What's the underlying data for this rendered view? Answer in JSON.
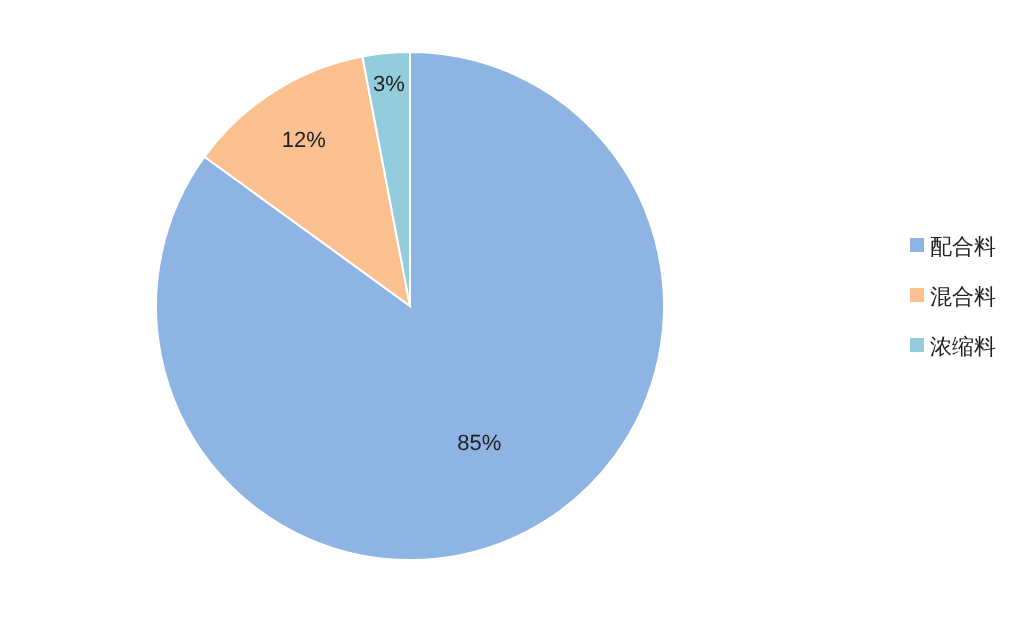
{
  "chart_data": {
    "type": "pie",
    "categories": [
      "配合料",
      "混合料",
      "浓缩料"
    ],
    "values": [
      85,
      12,
      3
    ],
    "colors": [
      "#8eb4e3",
      "#fac090",
      "#93cddd"
    ],
    "value_labels": [
      "85%",
      "12%",
      "3%"
    ],
    "legend": "right"
  }
}
